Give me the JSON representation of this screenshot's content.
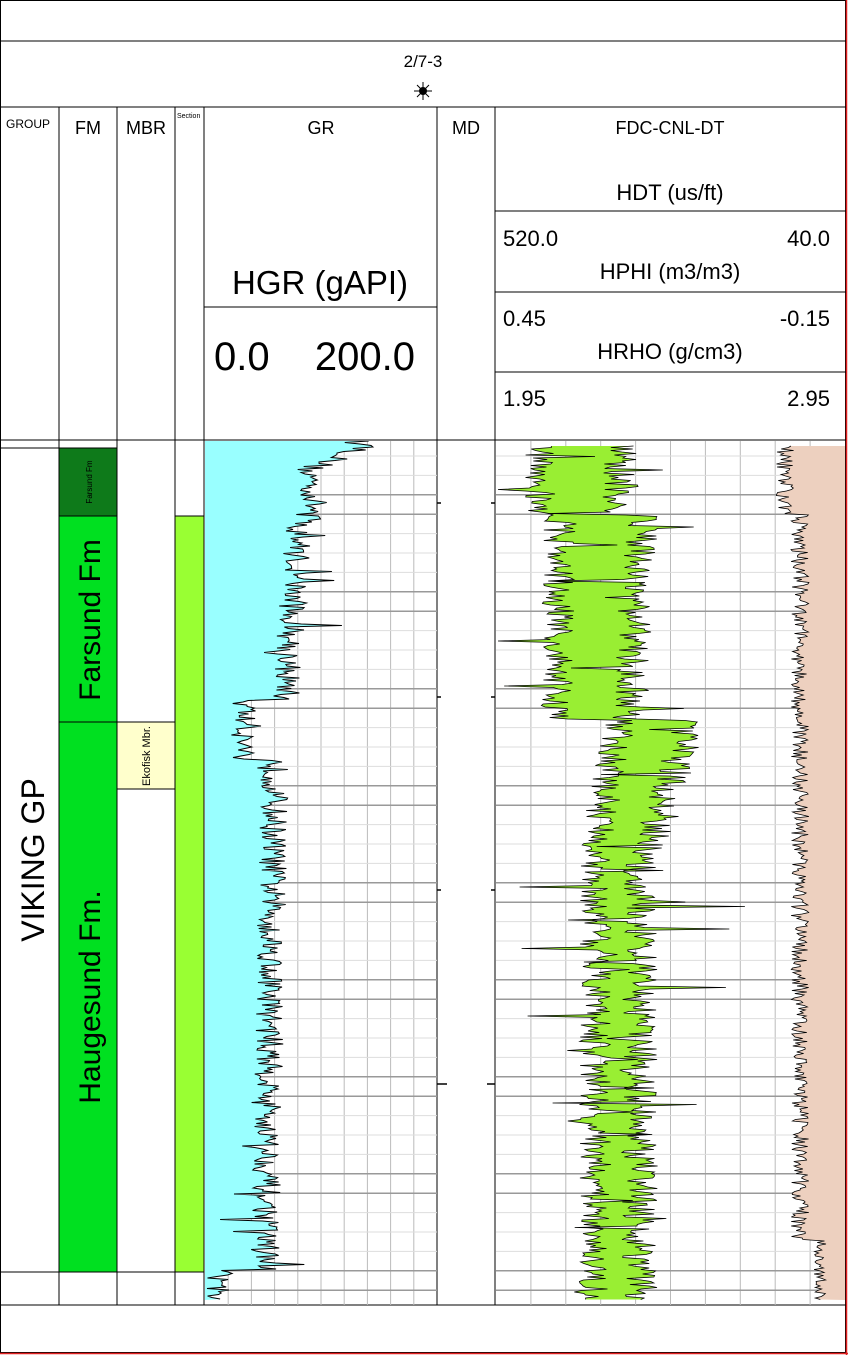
{
  "well": {
    "name": "2/7-3",
    "symbol": "dry-well-symbol"
  },
  "tracks": {
    "group_header": "GROUP",
    "fm_header": "FM",
    "mbr_header": "MBR",
    "section_header": "Section",
    "gr_header": "GR",
    "md_header": "MD",
    "fdc_header": "FDC-CNL-DT"
  },
  "curves": {
    "gr": {
      "label": "HGR (gAPI)",
      "min": "0.0",
      "max": "200.0"
    },
    "dt": {
      "label": "HDT (us/ft)",
      "min": "520.0",
      "max": "40.0"
    },
    "nphi": {
      "label": "HPHI (m3/m3)",
      "min": "0.45",
      "max": "-0.15"
    },
    "rho": {
      "label": "HRHO (g/cm3)",
      "min": "1.95",
      "max": "2.95"
    }
  },
  "stratigraphy": {
    "group": "VIKING GP",
    "formations": [
      "Farsund Fm",
      "Farsund Fm",
      "Haugesund Fm."
    ],
    "member": "Ekofisk Mbr."
  },
  "colors": {
    "gr_fill": "#99FFFF",
    "crossover_fill": "#99EE33",
    "density_fill": "#EDD0BF",
    "viking_group": "#00E020",
    "farsund_dark": "#0E7A1A",
    "ekofisk": "#FFFFCC",
    "section_fill": "#99FF33",
    "border_right": "#E02020"
  }
}
